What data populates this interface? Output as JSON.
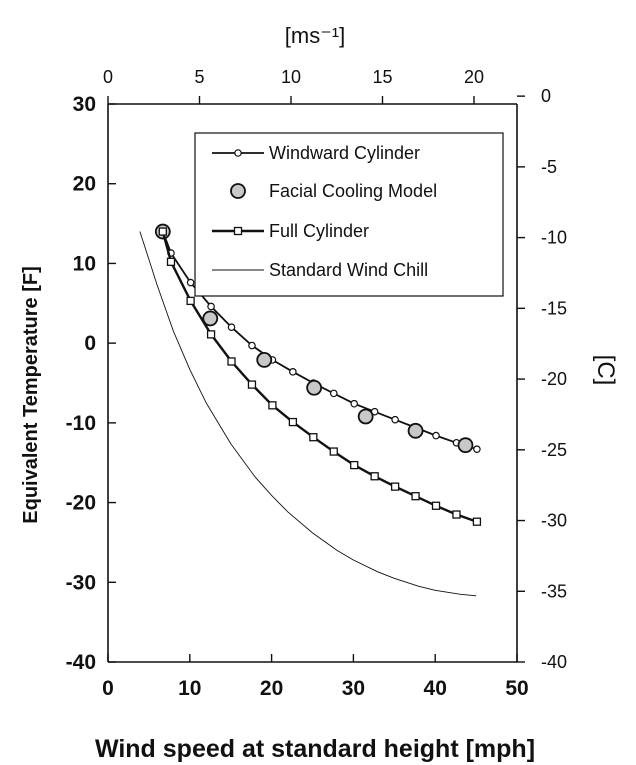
{
  "chart_data": {
    "type": "line",
    "title": "",
    "xlabel": "Wind speed at standard height [mph]",
    "ylabel": "Equivalent Temperature [F]",
    "x2label": "[ms⁻¹]",
    "y2label": "[C]",
    "xlim": [
      0,
      50
    ],
    "ylim": [
      -40,
      30
    ],
    "x2lim": [
      0,
      22.35
    ],
    "y2lim": [
      -40,
      -0.5556
    ],
    "x_ticks": [
      0,
      10,
      20,
      30,
      40,
      50
    ],
    "y_ticks": [
      -40,
      -30,
      -20,
      -10,
      0,
      10,
      20,
      30
    ],
    "x2_ticks": [
      0,
      5,
      10,
      15,
      20
    ],
    "y2_ticks": [
      -40,
      -35,
      -30,
      -25,
      -20,
      -15,
      -10,
      -5,
      0
    ],
    "x_tick_labels": [
      "0",
      "10",
      "20",
      "30",
      "40",
      "50"
    ],
    "y_tick_labels": [
      "-40",
      "-30",
      "-20",
      "-10",
      "0",
      "10",
      "20",
      "30"
    ],
    "x2_tick_labels": [
      "0",
      "5",
      "10",
      "15",
      "20"
    ],
    "y2_tick_labels": [
      "-40",
      "-35",
      "-30",
      "-25",
      "-20",
      "-15",
      "-10",
      "-5",
      "0"
    ],
    "grid": false,
    "legend_position": "top-right",
    "series": [
      {
        "name": "Windward Cylinder",
        "style": "line-small-circle",
        "x": [
          6.7,
          7.7,
          10.1,
          12.6,
          15.1,
          17.6,
          20.1,
          22.6,
          25.1,
          27.6,
          30.1,
          32.6,
          35.1,
          37.6,
          40.1,
          42.6,
          45.1
        ],
        "y": [
          14,
          11.3,
          7.6,
          4.6,
          2.0,
          -0.3,
          -2.1,
          -3.6,
          -5.0,
          -6.3,
          -7.6,
          -8.6,
          -9.6,
          -10.6,
          -11.6,
          -12.5,
          -13.3
        ]
      },
      {
        "name": "Facial Cooling Model",
        "style": "markers-large-circle",
        "x": [
          6.7,
          12.5,
          19.1,
          25.2,
          31.5,
          37.6,
          43.7
        ],
        "y": [
          14,
          3.1,
          -2.1,
          -5.6,
          -9.2,
          -11.0,
          -12.8
        ]
      },
      {
        "name": "Full Cylinder",
        "style": "line-square",
        "x": [
          6.7,
          7.7,
          10.1,
          12.6,
          15.1,
          17.6,
          20.1,
          22.6,
          25.1,
          27.6,
          30.1,
          32.6,
          35.1,
          37.6,
          40.1,
          42.6,
          45.1
        ],
        "y": [
          14,
          10.2,
          5.3,
          1.1,
          -2.3,
          -5.2,
          -7.8,
          -9.9,
          -11.8,
          -13.6,
          -15.3,
          -16.7,
          -18.0,
          -19.2,
          -20.4,
          -21.5,
          -22.4
        ]
      },
      {
        "name": "Standard Wind Chill",
        "style": "thin-line",
        "x": [
          3.9,
          5,
          6,
          8,
          10,
          12,
          15,
          18,
          20,
          22,
          25,
          28,
          30,
          33,
          35,
          38,
          40,
          43,
          45
        ],
        "y": [
          14,
          10.5,
          7.3,
          1.5,
          -3.3,
          -7.5,
          -12.6,
          -16.8,
          -19.1,
          -21.2,
          -23.8,
          -26.0,
          -27.2,
          -28.7,
          -29.5,
          -30.5,
          -31.0,
          -31.5,
          -31.7
        ]
      }
    ]
  }
}
